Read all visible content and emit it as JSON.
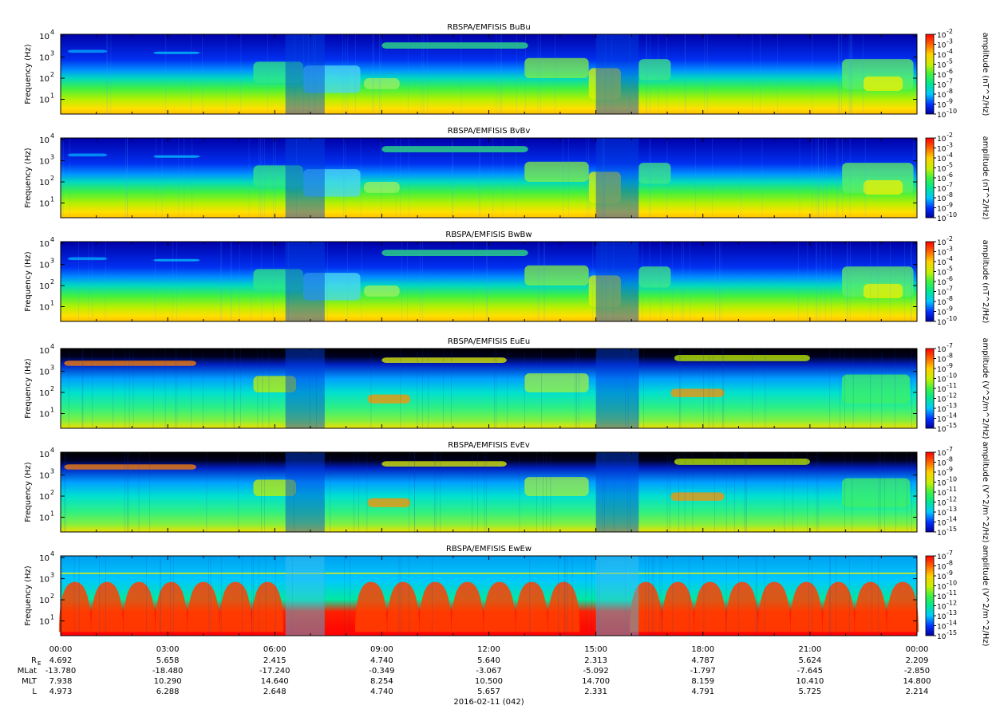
{
  "chart_data": {
    "type": "heatmap",
    "panels": [
      {
        "title": "RBSPA/EMFISIS  BuBu",
        "ylabel": "Frequency (Hz)",
        "colorbar_label": "amplitude (nT^2/Hz)",
        "cb_exps": [
          "-2",
          "-3",
          "-4",
          "-5",
          "-6",
          "-7",
          "-8",
          "-9",
          "-10"
        ]
      },
      {
        "title": "RBSPA/EMFISIS  BvBv",
        "ylabel": "Frequency (Hz)",
        "colorbar_label": "amplitude (nT^2/Hz)",
        "cb_exps": [
          "-2",
          "-3",
          "-4",
          "-5",
          "-6",
          "-7",
          "-8",
          "-9",
          "-10"
        ]
      },
      {
        "title": "RBSPA/EMFISIS  BwBw",
        "ylabel": "Frequency (Hz)",
        "colorbar_label": "amplitude (nT^2/Hz)",
        "cb_exps": [
          "-2",
          "-3",
          "-4",
          "-5",
          "-6",
          "-7",
          "-8",
          "-9",
          "-10"
        ]
      },
      {
        "title": "RBSPA/EMFISIS  EuEu",
        "ylabel": "Frequency (Hz)",
        "colorbar_label": "amplitude (V^2/m^2/Hz)",
        "cb_exps": [
          "-7",
          "-8",
          "-9",
          "-10",
          "-11",
          "-12",
          "-13",
          "-14",
          "-15"
        ]
      },
      {
        "title": "RBSPA/EMFISIS  EvEv",
        "ylabel": "Frequency (Hz)",
        "colorbar_label": "amplitude (V^2/m^2/Hz)",
        "cb_exps": [
          "-7",
          "-8",
          "-9",
          "-10",
          "-11",
          "-12",
          "-13",
          "-14",
          "-15"
        ]
      },
      {
        "title": "RBSPA/EMFISIS  EwEw",
        "ylabel": "Frequency (Hz)",
        "colorbar_label": "amplitude (V^2/m^2/Hz)",
        "cb_exps": [
          "-7",
          "-8",
          "-9",
          "-10",
          "-11",
          "-12",
          "-13",
          "-14",
          "-15"
        ]
      }
    ],
    "y_tick_exps": [
      "4",
      "3",
      "2",
      "1"
    ],
    "y_tick_base": "10",
    "ylim": [
      2,
      12000
    ],
    "y_scale": "log",
    "colormap": [
      "#0000a0",
      "#0030ff",
      "#00c8ff",
      "#00e890",
      "#40f040",
      "#c8f000",
      "#ffd000",
      "#ff6000",
      "#ff0000"
    ],
    "x_ticks": [
      "00:00",
      "03:00",
      "06:00",
      "09:00",
      "12:00",
      "15:00",
      "18:00",
      "21:00",
      "00:00"
    ],
    "ephemeris": {
      "labels": [
        "R",
        "MLat",
        "MLT",
        "L"
      ],
      "re_sub": "E",
      "rows": [
        [
          "4.692",
          "5.658",
          "2.415",
          "4.740",
          "5.640",
          "2.313",
          "4.787",
          "5.624",
          "2.209"
        ],
        [
          "-13.780",
          "-18.480",
          "-17.240",
          "-0.349",
          "-3.067",
          "-5.092",
          "-1.797",
          "-7.645",
          "-2.850"
        ],
        [
          "7.938",
          "10.290",
          "14.640",
          "8.254",
          "10.500",
          "14.700",
          "8.159",
          "10.410",
          "14.800"
        ],
        [
          "4.973",
          "6.288",
          "2.648",
          "4.740",
          "5.657",
          "2.331",
          "4.791",
          "5.725",
          "2.214"
        ]
      ]
    },
    "date_label": "2016-02-11 (042)"
  }
}
